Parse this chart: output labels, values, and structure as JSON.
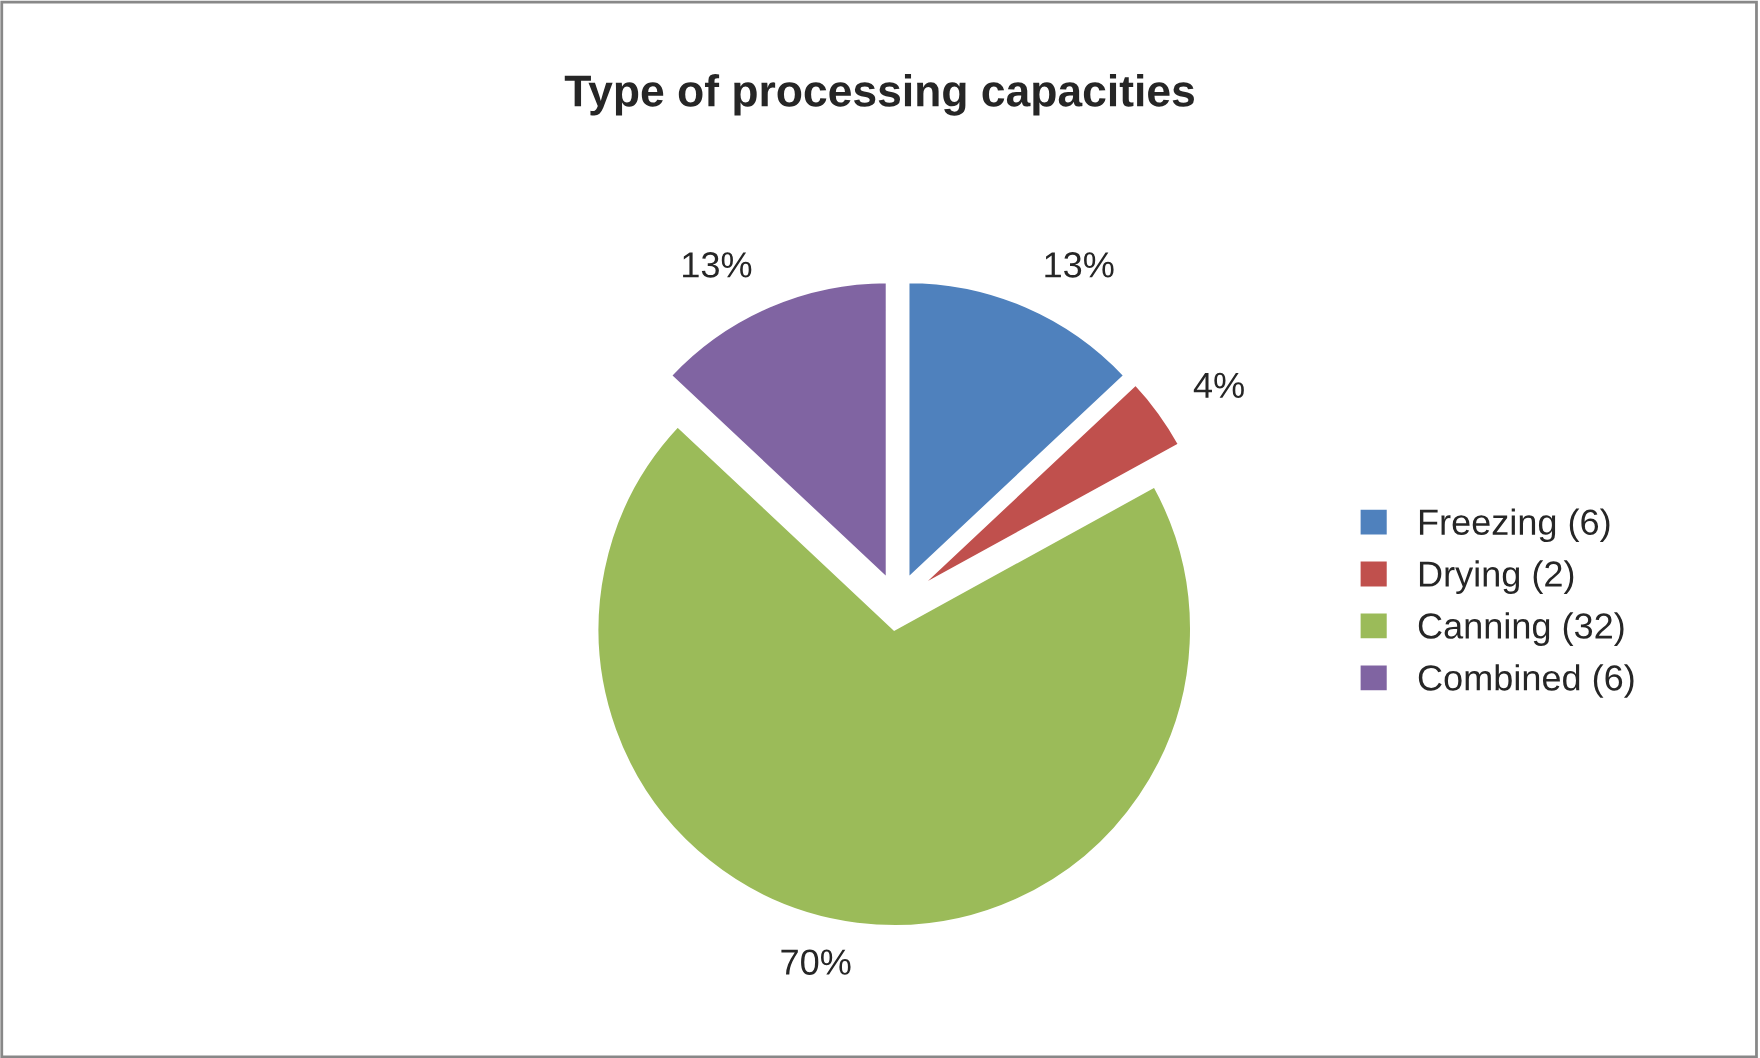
{
  "chart_data": {
    "type": "pie",
    "title": "Type of processing capacities",
    "categories": [
      "Freezing (6)",
      "Drying (2)",
      "Canning (32)",
      "Combined (6)"
    ],
    "values": [
      13,
      4,
      70,
      13
    ],
    "value_labels": [
      "13%",
      "4%",
      "70%",
      "13%"
    ],
    "colors": [
      "#4f81bd",
      "#c0504d",
      "#9bbb59",
      "#8064a2"
    ],
    "legend": "right"
  }
}
